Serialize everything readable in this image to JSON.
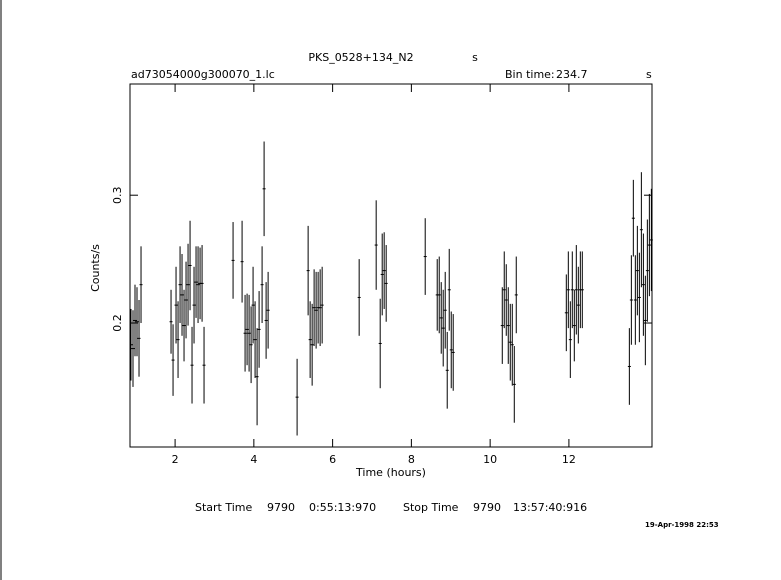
{
  "chart_data": {
    "type": "errorbar",
    "title": "PKS_0528+134_N2",
    "title_unit": "s",
    "filename": "ad73054000g300070_1.lc",
    "bin_time_label": "Bin time:",
    "bin_time": 234.7,
    "bin_time_unit": "s",
    "xlabel": "Time (hours)",
    "ylabel": "Counts/s",
    "start_label": "Start Time",
    "start_day": 9790,
    "start_time": "0:55:13:970",
    "stop_label": "Stop Time",
    "stop_day": 9790,
    "stop_time": "13:57:40:916",
    "date": "19-Apr-1998 22:53",
    "color": "#000000",
    "xlim": [
      0.855,
      14.11
    ],
    "ylim": [
      0.103,
      0.387
    ],
    "xticks": [
      2,
      4,
      6,
      8,
      10,
      12
    ],
    "yticks": [
      0.2,
      0.3
    ],
    "x": [
      0.88,
      0.931,
      0.982,
      1.033,
      1.084,
      1.135,
      1.897,
      1.948,
      2.024,
      2.075,
      2.126,
      2.176,
      2.227,
      2.278,
      2.329,
      2.38,
      2.43,
      2.481,
      2.532,
      2.583,
      2.634,
      2.685,
      2.735,
      3.472,
      3.701,
      3.777,
      3.828,
      3.879,
      3.93,
      3.98,
      4.031,
      4.082,
      4.133,
      4.209,
      4.26,
      4.311,
      4.362,
      5.098,
      5.378,
      5.429,
      5.48,
      5.53,
      5.581,
      5.632,
      5.683,
      5.734,
      6.674,
      7.106,
      7.208,
      7.259,
      7.309,
      7.36,
      8.351,
      8.656,
      8.707,
      8.758,
      8.808,
      8.859,
      8.91,
      8.961,
      9.012,
      9.062,
      10.308,
      10.358,
      10.409,
      10.46,
      10.511,
      10.562,
      10.613,
      10.663,
      11.934,
      11.985,
      12.036,
      12.086,
      12.137,
      12.188,
      12.239,
      12.29,
      12.34,
      13.535,
      13.586,
      13.636,
      13.687,
      13.738,
      13.789,
      13.84,
      13.891,
      13.941,
      13.992,
      14.043,
      14.094
    ],
    "values": [
      0.183,
      0.18,
      0.202,
      0.201,
      0.188,
      0.23,
      0.201,
      0.171,
      0.214,
      0.187,
      0.23,
      0.222,
      0.198,
      0.218,
      0.23,
      0.245,
      0.167,
      0.214,
      0.232,
      0.23,
      0.231,
      0.231,
      0.167,
      0.249,
      0.248,
      0.192,
      0.195,
      0.192,
      0.183,
      0.214,
      0.187,
      0.158,
      0.195,
      0.23,
      0.305,
      0.202,
      0.21,
      0.142,
      0.241,
      0.187,
      0.183,
      0.212,
      0.21,
      0.212,
      0.212,
      0.214,
      0.22,
      0.261,
      0.184,
      0.238,
      0.241,
      0.231,
      0.252,
      0.222,
      0.222,
      0.204,
      0.196,
      0.21,
      0.163,
      0.226,
      0.179,
      0.177,
      0.198,
      0.226,
      0.218,
      0.198,
      0.185,
      0.183,
      0.152,
      0.222,
      0.208,
      0.226,
      0.187,
      0.226,
      0.198,
      0.226,
      0.214,
      0.226,
      0.226,
      0.166,
      0.218,
      0.282,
      0.218,
      0.241,
      0.22,
      0.273,
      0.23,
      0.202,
      0.241,
      0.261,
      0.265
    ],
    "errors": [
      0.028,
      0.03,
      0.028,
      0.027,
      0.03,
      0.03,
      0.025,
      0.028,
      0.03,
      0.03,
      0.03,
      0.032,
      0.028,
      0.03,
      0.032,
      0.035,
      0.03,
      0.03,
      0.028,
      0.03,
      0.028,
      0.03,
      0.03,
      0.03,
      0.032,
      0.03,
      0.028,
      0.03,
      0.03,
      0.03,
      0.03,
      0.038,
      0.03,
      0.03,
      0.037,
      0.03,
      0.03,
      0.03,
      0.035,
      0.03,
      0.032,
      0.03,
      0.03,
      0.028,
      0.03,
      0.03,
      0.03,
      0.035,
      0.035,
      0.032,
      0.03,
      0.03,
      0.03,
      0.028,
      0.03,
      0.028,
      0.03,
      0.03,
      0.03,
      0.032,
      0.03,
      0.03,
      0.03,
      0.03,
      0.028,
      0.03,
      0.03,
      0.032,
      0.03,
      0.03,
      0.03,
      0.03,
      0.03,
      0.03,
      0.028,
      0.035,
      0.03,
      0.03,
      0.03,
      0.03,
      0.035,
      0.03,
      0.035,
      0.035,
      0.035,
      0.045,
      0.04,
      0.035,
      0.04,
      0.04,
      0.04
    ]
  }
}
